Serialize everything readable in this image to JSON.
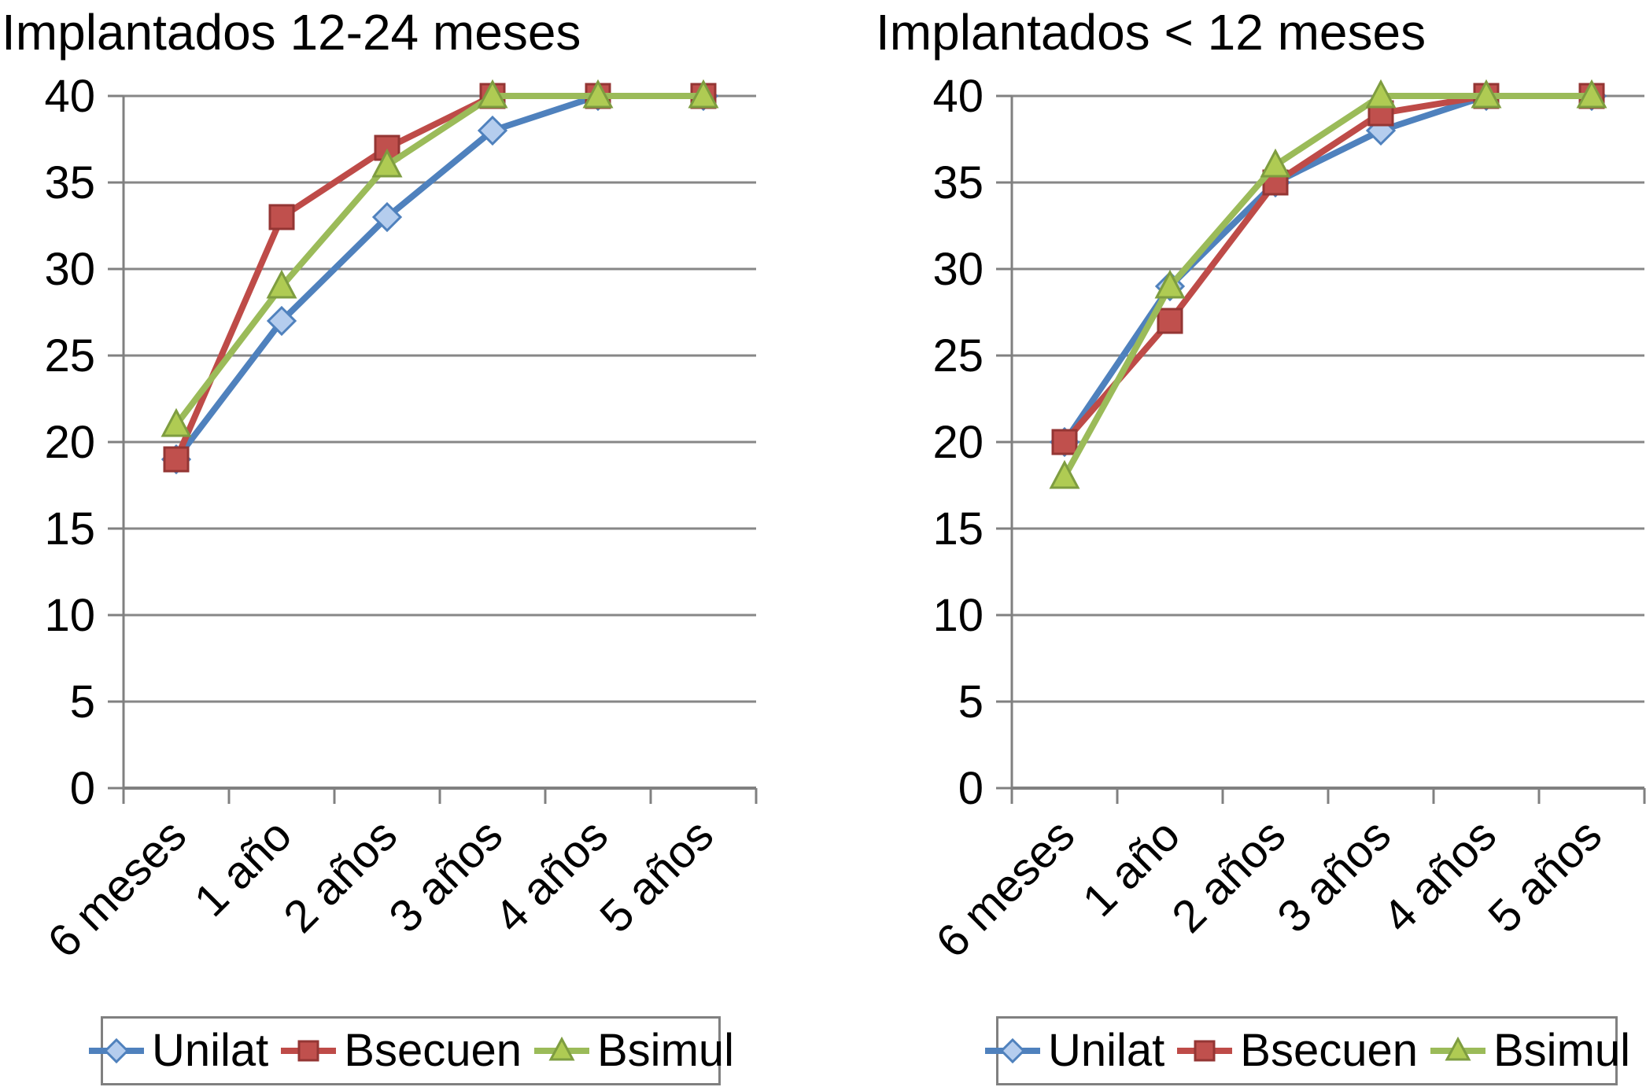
{
  "chart_data": [
    {
      "type": "line",
      "title": "Implantados 12-24 meses",
      "categories": [
        "6 meses",
        "1 año",
        "2 años",
        "3 años",
        "4 años",
        "5 años"
      ],
      "series": [
        {
          "name": "Unilat",
          "marker": "diamond",
          "line_color": "#4F81BD",
          "marker_fill": "#B5CDEE",
          "marker_stroke": "#4F81BD",
          "values": [
            19,
            27,
            33,
            38,
            40,
            40
          ]
        },
        {
          "name": "Bsecuen",
          "marker": "square",
          "line_color": "#BE4B48",
          "marker_fill": "#C0504D",
          "marker_stroke": "#943634",
          "values": [
            19,
            33,
            37,
            40,
            40,
            40
          ]
        },
        {
          "name": "Bsimul",
          "marker": "triangle",
          "line_color": "#9BBB59",
          "marker_fill": "#AFCB53",
          "marker_stroke": "#7E9D40",
          "values": [
            21,
            29,
            36,
            40,
            40,
            40
          ]
        }
      ],
      "xlabel": "",
      "ylabel": "",
      "ylim": [
        0,
        40
      ],
      "y_tick_step": 5,
      "y_tick_labels": [
        "0",
        "5",
        "10",
        "15",
        "20",
        "25",
        "30",
        "35",
        "40"
      ],
      "grid": "horizontal",
      "grid_color": "#878787",
      "axis_color": "#808080",
      "legend_position": "bottom",
      "legend_entries": [
        "Unilat",
        "Bsecuen",
        "Bsimul"
      ]
    },
    {
      "type": "line",
      "title": "Implantados < 12 meses",
      "categories": [
        "6 meses",
        "1 año",
        "2 años",
        "3 años",
        "4 años",
        "5 años"
      ],
      "series": [
        {
          "name": "Unilat",
          "marker": "diamond",
          "line_color": "#4F81BD",
          "marker_fill": "#B5CDEE",
          "marker_stroke": "#4F81BD",
          "values": [
            20,
            29,
            35,
            38,
            40,
            40
          ]
        },
        {
          "name": "Bsecuen",
          "marker": "square",
          "line_color": "#BE4B48",
          "marker_fill": "#C0504D",
          "marker_stroke": "#943634",
          "values": [
            20,
            27,
            35,
            39,
            40,
            40
          ]
        },
        {
          "name": "Bsimul",
          "marker": "triangle",
          "line_color": "#9BBB59",
          "marker_fill": "#AFCB53",
          "marker_stroke": "#7E9D40",
          "values": [
            18,
            29,
            36,
            40,
            40,
            40
          ]
        }
      ],
      "xlabel": "",
      "ylabel": "",
      "ylim": [
        0,
        40
      ],
      "y_tick_step": 5,
      "y_tick_labels": [
        "0",
        "5",
        "10",
        "15",
        "20",
        "25",
        "30",
        "35",
        "40"
      ],
      "grid": "horizontal",
      "grid_color": "#878787",
      "axis_color": "#808080",
      "legend_position": "bottom",
      "legend_entries": [
        "Unilat",
        "Bsecuen",
        "Bsimul"
      ]
    }
  ]
}
